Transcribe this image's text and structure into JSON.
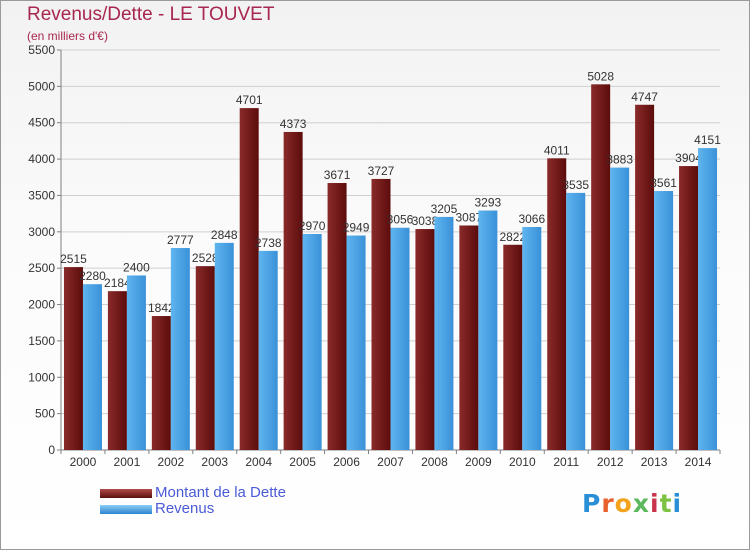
{
  "title": "Revenus/Dette - LE TOUVET",
  "subtitle": "(en milliers d'€)",
  "logo": {
    "text": "Proxiti",
    "colors": [
      "#2a8fd6",
      "#e8612c",
      "#f2a31b",
      "#5cb85c",
      "#c7344b",
      "#7dc242",
      "#2a8fd6"
    ]
  },
  "legend": [
    {
      "label": "Montant de la Dette",
      "color": "#7a1a1a"
    },
    {
      "label": "Revenus",
      "color": "#4ea7e8"
    }
  ],
  "chart_data": {
    "type": "bar",
    "categories": [
      "2000",
      "2001",
      "2002",
      "2003",
      "2004",
      "2005",
      "2006",
      "2007",
      "2008",
      "2009",
      "2010",
      "2011",
      "2012",
      "2013",
      "2014"
    ],
    "series": [
      {
        "name": "Montant de la Dette",
        "color": "#7a1a1a",
        "values": [
          2515,
          2184,
          1842,
          2528,
          4701,
          4373,
          3671,
          3727,
          3038,
          3087,
          2822,
          4011,
          5028,
          4747,
          3904
        ]
      },
      {
        "name": "Revenus",
        "color": "#4ea7e8",
        "values": [
          2280,
          2400,
          2777,
          2848,
          2738,
          2970,
          2949,
          3056,
          3205,
          3293,
          3066,
          3535,
          3883,
          3561,
          4151
        ]
      }
    ],
    "data_labels": [
      [
        "2515",
        "2184",
        "1842",
        "2528",
        "4701",
        "4373",
        "3671",
        "3727",
        "3038",
        "3087",
        "2822",
        "4011",
        "5028",
        "4747",
        "3904"
      ],
      [
        "2280",
        "2400",
        "2777",
        "2848",
        "2738",
        "2970",
        "2949",
        "3056",
        "3205",
        "3293",
        "3066",
        "3535",
        "3883",
        "3561",
        "4151"
      ]
    ],
    "yticks": [
      "0",
      "500",
      "1000",
      "1500",
      "2000",
      "2500",
      "3000",
      "3500",
      "4000",
      "4500",
      "5000",
      "5500"
    ],
    "ylim": [
      0,
      5500
    ],
    "grid": true
  }
}
